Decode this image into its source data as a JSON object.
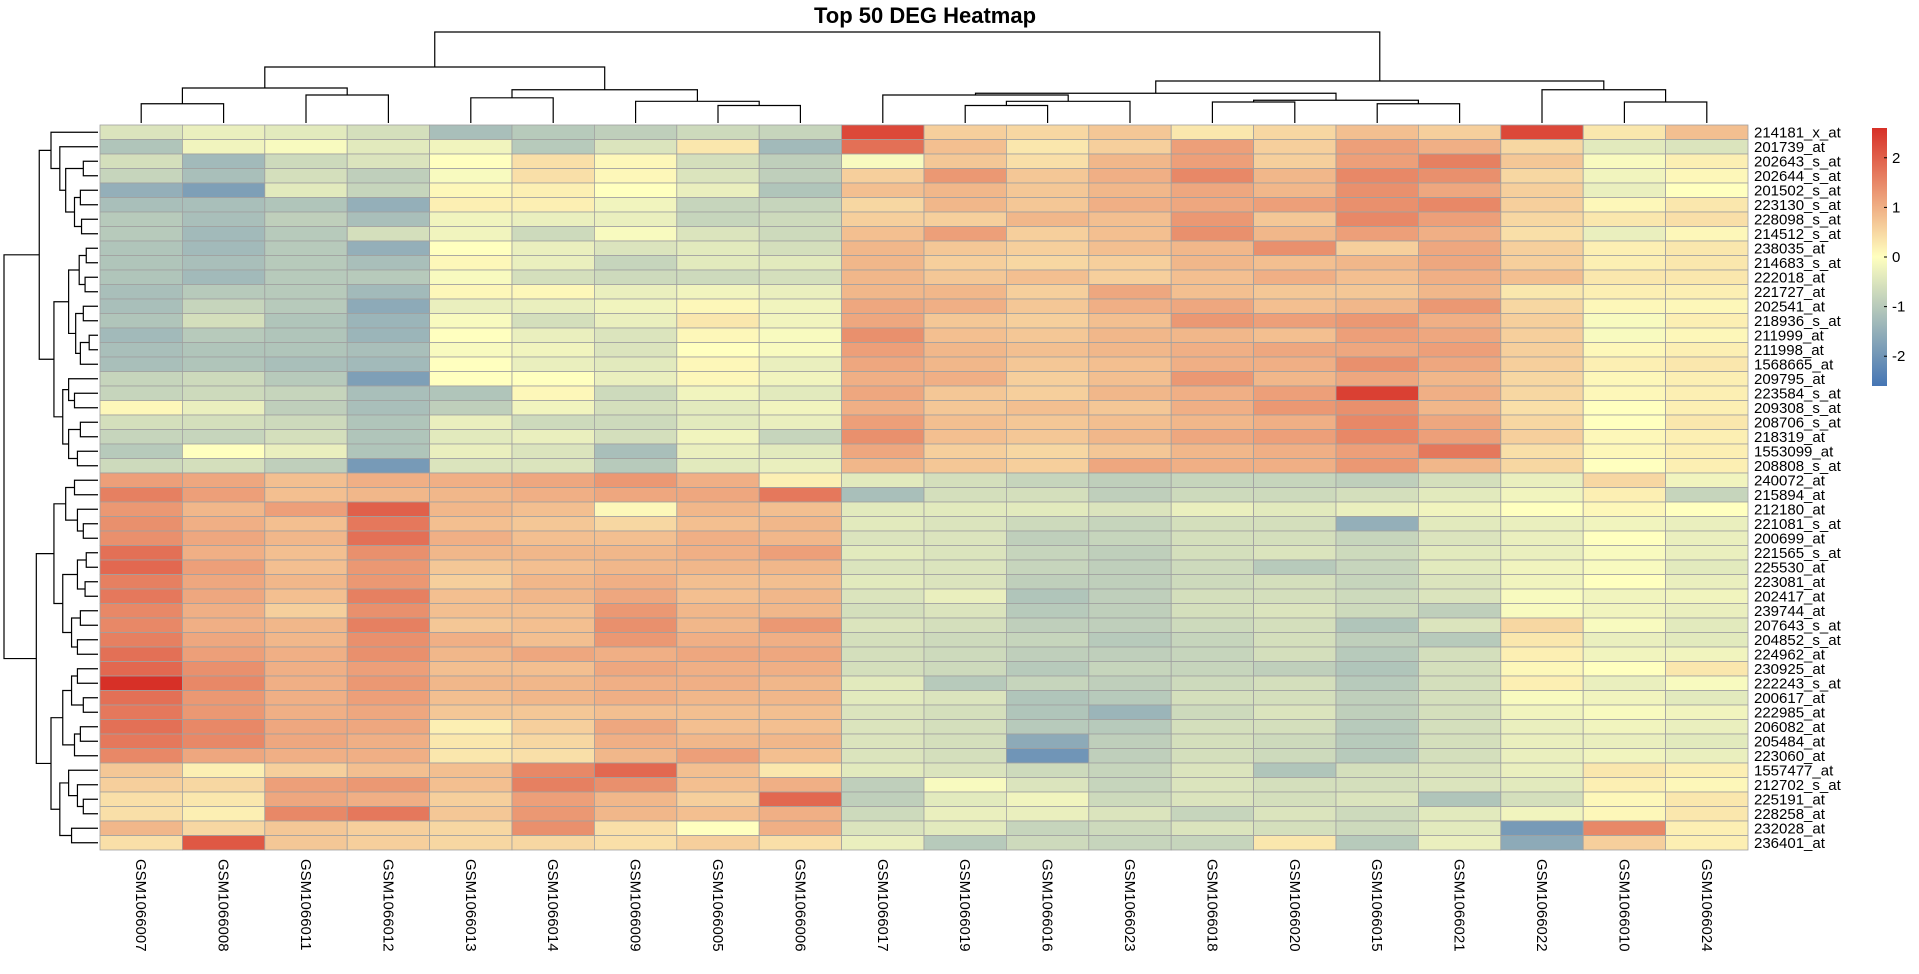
{
  "chart_data": {
    "type": "heatmap",
    "title": "Top 50 DEG Heatmap",
    "columns": [
      "GSM1066007",
      "GSM1066008",
      "GSM1066011",
      "GSM1066012",
      "GSM1066013",
      "GSM1066014",
      "GSM1066009",
      "GSM1066005",
      "GSM1066006",
      "GSM1066017",
      "GSM1066019",
      "GSM1066016",
      "GSM1066023",
      "GSM1066018",
      "GSM1066020",
      "GSM1066015",
      "GSM1066021",
      "GSM1066022",
      "GSM1066010",
      "GSM1066024"
    ],
    "rows": [
      "214181_x_at",
      "201739_at",
      "202643_s_at",
      "202644_s_at",
      "201502_s_at",
      "223130_s_at",
      "228098_s_at",
      "214512_s_at",
      "238035_at",
      "214683_s_at",
      "222018_at",
      "221727_at",
      "202541_at",
      "218936_s_at",
      "211999_at",
      "211998_at",
      "1568665_at",
      "209795_at",
      "223584_s_at",
      "209308_s_at",
      "208706_s_at",
      "218319_at",
      "1553099_at",
      "208808_s_at",
      "240072_at",
      "215894_at",
      "212180_at",
      "221081_s_at",
      "200699_at",
      "221565_s_at",
      "225530_at",
      "223081_at",
      "202417_at",
      "239744_at",
      "207643_s_at",
      "204852_s_at",
      "224962_at",
      "230925_at",
      "222243_s_at",
      "200617_at",
      "222985_at",
      "206082_at",
      "205484_at",
      "223060_at",
      "1557477_at",
      "212702_s_at",
      "225191_at",
      "228258_at",
      "232028_at",
      "236401_at"
    ],
    "values": [
      [
        -0.5,
        -0.3,
        -0.4,
        -0.6,
        -1.2,
        -1.0,
        -0.9,
        -0.7,
        -0.8,
        2.3,
        0.6,
        0.5,
        0.7,
        0.3,
        0.5,
        0.8,
        0.6,
        2.3,
        0.3,
        0.8
      ],
      [
        -1.1,
        -0.2,
        -0.1,
        -0.4,
        -0.2,
        -1.0,
        -0.5,
        0.3,
        -1.3,
        1.8,
        0.8,
        0.3,
        0.6,
        1.2,
        0.6,
        1.2,
        1.0,
        0.5,
        -0.4,
        -0.5
      ],
      [
        -0.6,
        -1.3,
        -0.7,
        -0.5,
        0.0,
        0.4,
        0.1,
        -0.6,
        -0.9,
        -0.1,
        0.7,
        0.4,
        0.9,
        1.2,
        0.6,
        1.2,
        1.6,
        0.7,
        -0.1,
        0.2
      ],
      [
        -0.8,
        -1.2,
        -0.6,
        -0.9,
        -0.1,
        0.4,
        0.1,
        -0.5,
        -0.9,
        0.6,
        1.3,
        0.7,
        1.0,
        1.5,
        0.9,
        1.5,
        1.4,
        0.5,
        -0.2,
        0.1
      ],
      [
        -1.5,
        -1.8,
        -0.4,
        -0.8,
        0.1,
        0.2,
        0.0,
        -0.3,
        -1.1,
        0.8,
        0.9,
        0.7,
        0.9,
        1.1,
        0.9,
        1.4,
        1.1,
        0.6,
        -0.3,
        0.0
      ],
      [
        -1.2,
        -1.2,
        -1.1,
        -1.5,
        0.2,
        0.2,
        -0.2,
        -0.8,
        -0.8,
        0.5,
        0.9,
        0.7,
        1.0,
        1.1,
        1.2,
        1.4,
        1.5,
        0.6,
        0.1,
        0.3
      ],
      [
        -1.0,
        -1.2,
        -0.9,
        -1.2,
        -0.2,
        -0.3,
        -0.3,
        -0.8,
        -0.7,
        0.6,
        0.6,
        0.9,
        0.8,
        1.3,
        0.7,
        1.5,
        1.2,
        0.5,
        0.3,
        0.4
      ],
      [
        -1.0,
        -1.3,
        -1.0,
        -0.6,
        -0.2,
        -0.7,
        -0.1,
        -0.5,
        -0.7,
        0.8,
        1.2,
        0.6,
        0.8,
        1.4,
        0.9,
        1.2,
        1.0,
        0.4,
        -0.3,
        0.1
      ],
      [
        -1.1,
        -1.3,
        -1.0,
        -1.5,
        0.0,
        -0.3,
        -0.5,
        -0.4,
        -0.6,
        0.9,
        0.7,
        0.6,
        0.8,
        0.9,
        1.4,
        0.6,
        1.1,
        0.6,
        0.2,
        0.3
      ],
      [
        -1.1,
        -1.2,
        -1.0,
        -1.2,
        0.1,
        -0.3,
        -0.8,
        -0.4,
        -0.4,
        0.9,
        0.6,
        0.5,
        0.6,
        0.9,
        0.8,
        0.9,
        1.1,
        0.6,
        0.2,
        0.3
      ],
      [
        -1.1,
        -1.3,
        -1.0,
        -1.0,
        -0.1,
        -0.6,
        -0.7,
        -0.7,
        -0.6,
        0.9,
        0.7,
        0.8,
        0.6,
        0.8,
        1.0,
        0.8,
        1.0,
        0.8,
        0.3,
        0.3
      ],
      [
        -1.2,
        -1.0,
        -1.0,
        -1.3,
        0.1,
        0.1,
        -0.3,
        -0.2,
        -0.3,
        0.9,
        0.9,
        0.6,
        1.1,
        0.8,
        0.7,
        0.7,
        0.9,
        0.3,
        0.2,
        0.2
      ],
      [
        -1.2,
        -0.8,
        -1.0,
        -1.6,
        -0.3,
        -0.3,
        -0.2,
        0.1,
        -0.2,
        1.1,
        1.0,
        0.7,
        1.0,
        1.1,
        0.8,
        0.9,
        1.3,
        0.5,
        0.1,
        0.1
      ],
      [
        -1.1,
        -0.6,
        -1.1,
        -1.4,
        -0.1,
        -0.6,
        -0.3,
        0.3,
        -0.2,
        1.1,
        0.7,
        0.6,
        0.8,
        1.3,
        1.2,
        1.3,
        1.0,
        0.6,
        -0.1,
        0.2
      ],
      [
        -1.3,
        -1.0,
        -1.1,
        -1.4,
        0.0,
        -0.3,
        -0.5,
        0.1,
        -0.1,
        1.4,
        0.8,
        0.7,
        0.9,
        0.9,
        0.8,
        1.2,
        1.1,
        0.6,
        -0.1,
        0.1
      ],
      [
        -1.2,
        -1.1,
        -1.1,
        -1.2,
        -0.1,
        -0.2,
        -0.5,
        0.0,
        -0.1,
        1.2,
        0.9,
        0.8,
        0.9,
        1.0,
        1.1,
        1.1,
        1.2,
        0.6,
        0.1,
        0.2
      ],
      [
        -1.2,
        -1.1,
        -1.2,
        -1.3,
        0.0,
        -0.3,
        -0.4,
        0.1,
        -0.3,
        1.1,
        0.9,
        0.7,
        0.8,
        1.0,
        1.0,
        1.4,
        1.1,
        0.6,
        0.2,
        0.3
      ],
      [
        -0.8,
        -0.7,
        -1.0,
        -1.8,
        0.0,
        0.0,
        -0.3,
        0.1,
        -0.2,
        1.0,
        1.0,
        0.6,
        0.8,
        1.3,
        0.9,
        1.1,
        0.9,
        0.5,
        0.1,
        0.2
      ],
      [
        -0.8,
        -0.7,
        -0.8,
        -1.2,
        -1.1,
        0.1,
        -0.7,
        -0.2,
        -0.4,
        1.1,
        0.7,
        0.6,
        0.9,
        1.0,
        1.2,
        2.4,
        1.0,
        0.5,
        0.1,
        0.2
      ],
      [
        0.1,
        -0.3,
        -0.9,
        -1.2,
        -0.9,
        -0.2,
        -0.6,
        -0.4,
        -0.2,
        1.0,
        0.7,
        0.8,
        0.7,
        1.0,
        1.3,
        1.4,
        0.9,
        0.4,
        0.0,
        0.2
      ],
      [
        -0.6,
        -0.6,
        -0.7,
        -1.1,
        -0.3,
        -0.7,
        -0.7,
        -0.4,
        -0.3,
        1.2,
        0.8,
        0.7,
        0.8,
        0.9,
        1.0,
        1.5,
        1.1,
        0.5,
        0.0,
        0.3
      ],
      [
        -0.8,
        -0.8,
        -0.6,
        -1.1,
        -0.4,
        -0.3,
        -0.6,
        -0.2,
        -0.8,
        1.4,
        0.8,
        0.7,
        0.9,
        1.1,
        1.2,
        1.5,
        1.2,
        0.6,
        0.1,
        0.2
      ],
      [
        -1.0,
        0.0,
        -0.3,
        -1.1,
        -0.3,
        -0.5,
        -1.2,
        -0.3,
        -0.4,
        1.1,
        0.6,
        0.5,
        0.7,
        0.9,
        1.0,
        1.2,
        1.7,
        0.4,
        0.1,
        0.2
      ],
      [
        -0.7,
        -0.6,
        -0.9,
        -1.9,
        -0.5,
        -0.5,
        -1.0,
        -0.4,
        -0.3,
        0.9,
        0.7,
        0.6,
        1.1,
        1.0,
        1.0,
        1.3,
        0.9,
        0.5,
        0.0,
        0.2
      ],
      [
        1.2,
        1.1,
        0.8,
        1.0,
        1.0,
        1.1,
        1.3,
        1.0,
        0.2,
        -0.4,
        -0.6,
        -0.8,
        -0.9,
        -0.8,
        -0.8,
        -0.9,
        -0.6,
        -0.3,
        0.5,
        -0.2
      ],
      [
        1.6,
        1.2,
        0.8,
        0.9,
        0.9,
        1.0,
        1.1,
        1.1,
        1.7,
        -1.2,
        -0.6,
        -0.6,
        -0.9,
        -0.7,
        -0.7,
        -0.6,
        -0.4,
        -0.2,
        0.2,
        -0.8
      ],
      [
        1.3,
        0.9,
        1.2,
        2.0,
        0.9,
        0.8,
        0.1,
        0.9,
        0.8,
        -0.4,
        -0.4,
        -0.4,
        -0.5,
        -0.3,
        -0.4,
        -0.3,
        -0.2,
        0.0,
        0.1,
        0.0
      ],
      [
        1.4,
        1.0,
        0.8,
        1.7,
        0.8,
        0.7,
        0.5,
        0.8,
        0.9,
        -0.4,
        -0.5,
        -0.7,
        -0.8,
        -0.6,
        -0.6,
        -1.5,
        -0.4,
        -0.3,
        -0.2,
        -0.3
      ],
      [
        1.4,
        1.1,
        0.9,
        1.8,
        1.0,
        0.8,
        0.8,
        1.0,
        0.9,
        -0.5,
        -0.5,
        -0.9,
        -0.8,
        -0.6,
        -0.6,
        -0.8,
        -0.5,
        -0.3,
        0.0,
        -0.3
      ],
      [
        1.8,
        1.0,
        0.8,
        1.4,
        0.9,
        0.9,
        0.9,
        1.0,
        1.2,
        -0.4,
        -0.5,
        -0.8,
        -0.9,
        -0.6,
        -0.5,
        -0.7,
        -0.4,
        -0.3,
        -0.1,
        -0.3
      ],
      [
        1.9,
        1.2,
        0.8,
        1.3,
        0.7,
        0.8,
        0.9,
        0.9,
        0.9,
        -0.5,
        -0.5,
        -0.8,
        -0.9,
        -0.7,
        -1.0,
        -0.8,
        -0.4,
        -0.2,
        -0.1,
        -0.4
      ],
      [
        1.6,
        1.1,
        0.9,
        1.3,
        0.6,
        0.9,
        1.0,
        0.8,
        0.8,
        -0.4,
        -0.5,
        -0.9,
        -0.9,
        -0.7,
        -0.6,
        -0.8,
        -0.5,
        -0.2,
        0.0,
        -0.3
      ],
      [
        1.7,
        1.1,
        0.8,
        1.6,
        0.8,
        0.9,
        1.1,
        0.8,
        0.9,
        -0.5,
        -0.3,
        -1.1,
        -0.9,
        -0.6,
        -0.6,
        -0.7,
        -0.5,
        -0.1,
        -0.2,
        -0.2
      ],
      [
        1.5,
        1.0,
        0.6,
        1.4,
        0.8,
        0.8,
        1.3,
        0.9,
        0.9,
        -0.6,
        -0.5,
        -1.0,
        -0.9,
        -0.6,
        -0.5,
        -0.7,
        -0.9,
        -0.1,
        -0.2,
        -0.3
      ],
      [
        1.5,
        1.0,
        0.9,
        1.6,
        0.7,
        0.8,
        1.4,
        0.9,
        1.3,
        -0.5,
        -0.6,
        -0.9,
        -0.9,
        -0.7,
        -0.6,
        -1.1,
        -0.5,
        0.5,
        -0.1,
        -0.4
      ],
      [
        1.6,
        1.1,
        0.9,
        1.4,
        1.0,
        0.8,
        1.3,
        1.0,
        1.0,
        -0.6,
        -0.7,
        -0.8,
        -1.0,
        -0.8,
        -0.6,
        -0.9,
        -1.0,
        0.3,
        -0.3,
        -0.4
      ],
      [
        1.8,
        1.2,
        1.0,
        1.4,
        0.9,
        1.1,
        1.0,
        1.1,
        1.1,
        -0.6,
        -0.7,
        -0.9,
        -0.9,
        -0.8,
        -0.6,
        -1.0,
        -0.6,
        0.2,
        -0.2,
        -0.2
      ],
      [
        1.9,
        1.4,
        1.0,
        1.2,
        0.8,
        0.8,
        1.1,
        1.0,
        1.0,
        -0.6,
        -0.7,
        -1.0,
        -0.8,
        -0.8,
        -0.9,
        -1.1,
        -0.6,
        0.1,
        0.0,
        0.3
      ],
      [
        2.6,
        1.5,
        1.0,
        1.3,
        0.9,
        0.9,
        1.0,
        1.0,
        0.9,
        -0.4,
        -1.0,
        -0.8,
        -0.9,
        -0.7,
        -0.6,
        -1.0,
        -0.6,
        0.2,
        -0.3,
        -0.1
      ],
      [
        1.8,
        1.3,
        1.0,
        1.2,
        0.8,
        0.9,
        1.0,
        0.9,
        0.9,
        -0.4,
        -0.5,
        -1.1,
        -1.0,
        -0.6,
        -0.6,
        -0.9,
        -0.6,
        -0.1,
        -0.2,
        -0.4
      ],
      [
        1.7,
        1.3,
        1.0,
        1.1,
        0.7,
        0.7,
        0.8,
        0.8,
        0.8,
        -0.5,
        -0.6,
        -1.1,
        -1.4,
        -0.7,
        -0.5,
        -0.9,
        -0.6,
        -0.2,
        -0.1,
        -0.2
      ],
      [
        1.8,
        1.5,
        1.1,
        1.1,
        0.2,
        0.6,
        1.1,
        0.8,
        0.8,
        -0.5,
        -0.6,
        -1.0,
        -1.0,
        -0.6,
        -0.6,
        -1.0,
        -0.6,
        -0.3,
        -0.2,
        -0.3
      ],
      [
        1.7,
        1.5,
        1.1,
        1.0,
        0.3,
        0.5,
        1.0,
        0.9,
        0.9,
        -0.5,
        -0.6,
        -1.6,
        -0.9,
        -0.6,
        -0.7,
        -1.0,
        -0.6,
        -0.3,
        -0.3,
        -0.4
      ],
      [
        1.5,
        1.1,
        1.0,
        1.0,
        0.3,
        0.4,
        0.9,
        1.2,
        0.8,
        -0.5,
        -0.6,
        -2.0,
        -0.9,
        -0.6,
        -0.7,
        -1.0,
        -0.6,
        -0.3,
        -0.2,
        -0.3
      ],
      [
        0.7,
        0.2,
        0.6,
        0.8,
        0.8,
        1.5,
        1.9,
        0.8,
        0.3,
        -0.4,
        -0.5,
        -0.7,
        -0.8,
        -0.5,
        -1.1,
        -0.6,
        -0.5,
        -0.3,
        0.3,
        0.2
      ],
      [
        0.6,
        0.5,
        1.2,
        1.3,
        0.8,
        1.6,
        1.4,
        0.8,
        1.0,
        -0.9,
        -0.1,
        -0.5,
        -0.8,
        -0.5,
        -0.6,
        -0.6,
        -0.5,
        -0.4,
        0.2,
        0.1
      ],
      [
        0.4,
        0.3,
        1.1,
        1.0,
        0.6,
        1.2,
        0.9,
        0.6,
        1.9,
        -0.9,
        -0.4,
        -0.2,
        -0.7,
        -0.5,
        -0.6,
        -0.5,
        -1.1,
        -0.6,
        0.1,
        0.3
      ],
      [
        0.4,
        0.2,
        1.5,
        1.7,
        0.7,
        1.3,
        0.9,
        0.8,
        1.0,
        -0.7,
        -0.3,
        -0.3,
        -0.5,
        -0.8,
        -0.5,
        -0.7,
        -0.4,
        -0.2,
        0.1,
        0.3
      ],
      [
        0.9,
        0.5,
        0.7,
        0.6,
        0.5,
        1.4,
        0.4,
        0.0,
        1.0,
        -0.5,
        -0.4,
        -0.8,
        -0.7,
        -0.5,
        -0.6,
        -0.7,
        -0.4,
        -1.9,
        1.5,
        0.2
      ],
      [
        0.4,
        2.1,
        0.7,
        0.6,
        0.5,
        0.5,
        0.4,
        0.6,
        0.4,
        -0.3,
        -1.0,
        -0.7,
        -0.8,
        -0.8,
        0.3,
        -1.0,
        -0.3,
        -1.6,
        0.6,
        0.2
      ]
    ],
    "legend": {
      "ticks": [
        2,
        1,
        0,
        -1,
        -2
      ],
      "min": -2.6,
      "max": 2.6
    },
    "colors": {
      "low": "#4575b4",
      "mid": "#ffffbf",
      "high": "#d73027",
      "border": "#a0a0a0"
    }
  }
}
